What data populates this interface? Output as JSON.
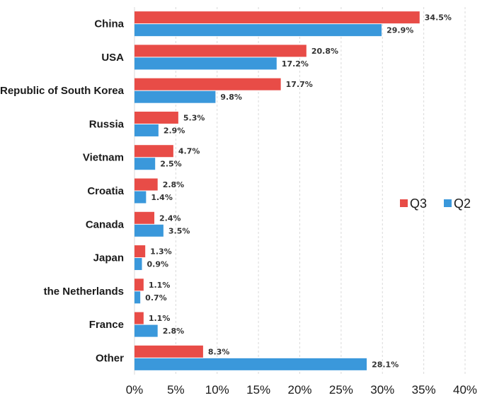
{
  "chart_data": {
    "type": "bar",
    "orientation": "horizontal",
    "categories": [
      "China",
      "USA",
      "Republic of South Korea",
      "Russia",
      "Vietnam",
      "Croatia",
      "Canada",
      "Japan",
      "the Netherlands",
      "France",
      "Other"
    ],
    "series": [
      {
        "name": "Q3",
        "color": "#e84c47",
        "values": [
          34.5,
          20.8,
          17.7,
          5.3,
          4.7,
          2.8,
          2.4,
          1.3,
          1.1,
          1.1,
          8.3
        ],
        "labels": [
          "34.5%",
          "20.8%",
          "17.7%",
          "5.3%",
          "4.7%",
          "2.8%",
          "2.4%",
          "1.3%",
          "1.1%",
          "1.1%",
          "8.3%"
        ]
      },
      {
        "name": "Q2",
        "color": "#3a98db",
        "values": [
          29.9,
          17.2,
          9.8,
          2.9,
          2.5,
          1.4,
          3.5,
          0.9,
          0.7,
          2.8,
          28.1
        ],
        "labels": [
          "29.9%",
          "17.2%",
          "9.8%",
          "2.9%",
          "2.5%",
          "1.4%",
          "3.5%",
          "0.9%",
          "0.7%",
          "2.8%",
          "28.1%"
        ]
      }
    ],
    "xlim": [
      0,
      40
    ],
    "xticks": [
      0,
      5,
      10,
      15,
      20,
      25,
      30,
      35,
      40
    ],
    "xtick_labels": [
      "0%",
      "5%",
      "10%",
      "15%",
      "20%",
      "25%",
      "30%",
      "35%",
      "40%"
    ],
    "grid": "vertical-dashed",
    "legend_position": "right",
    "title": "",
    "xlabel": "",
    "ylabel": ""
  }
}
